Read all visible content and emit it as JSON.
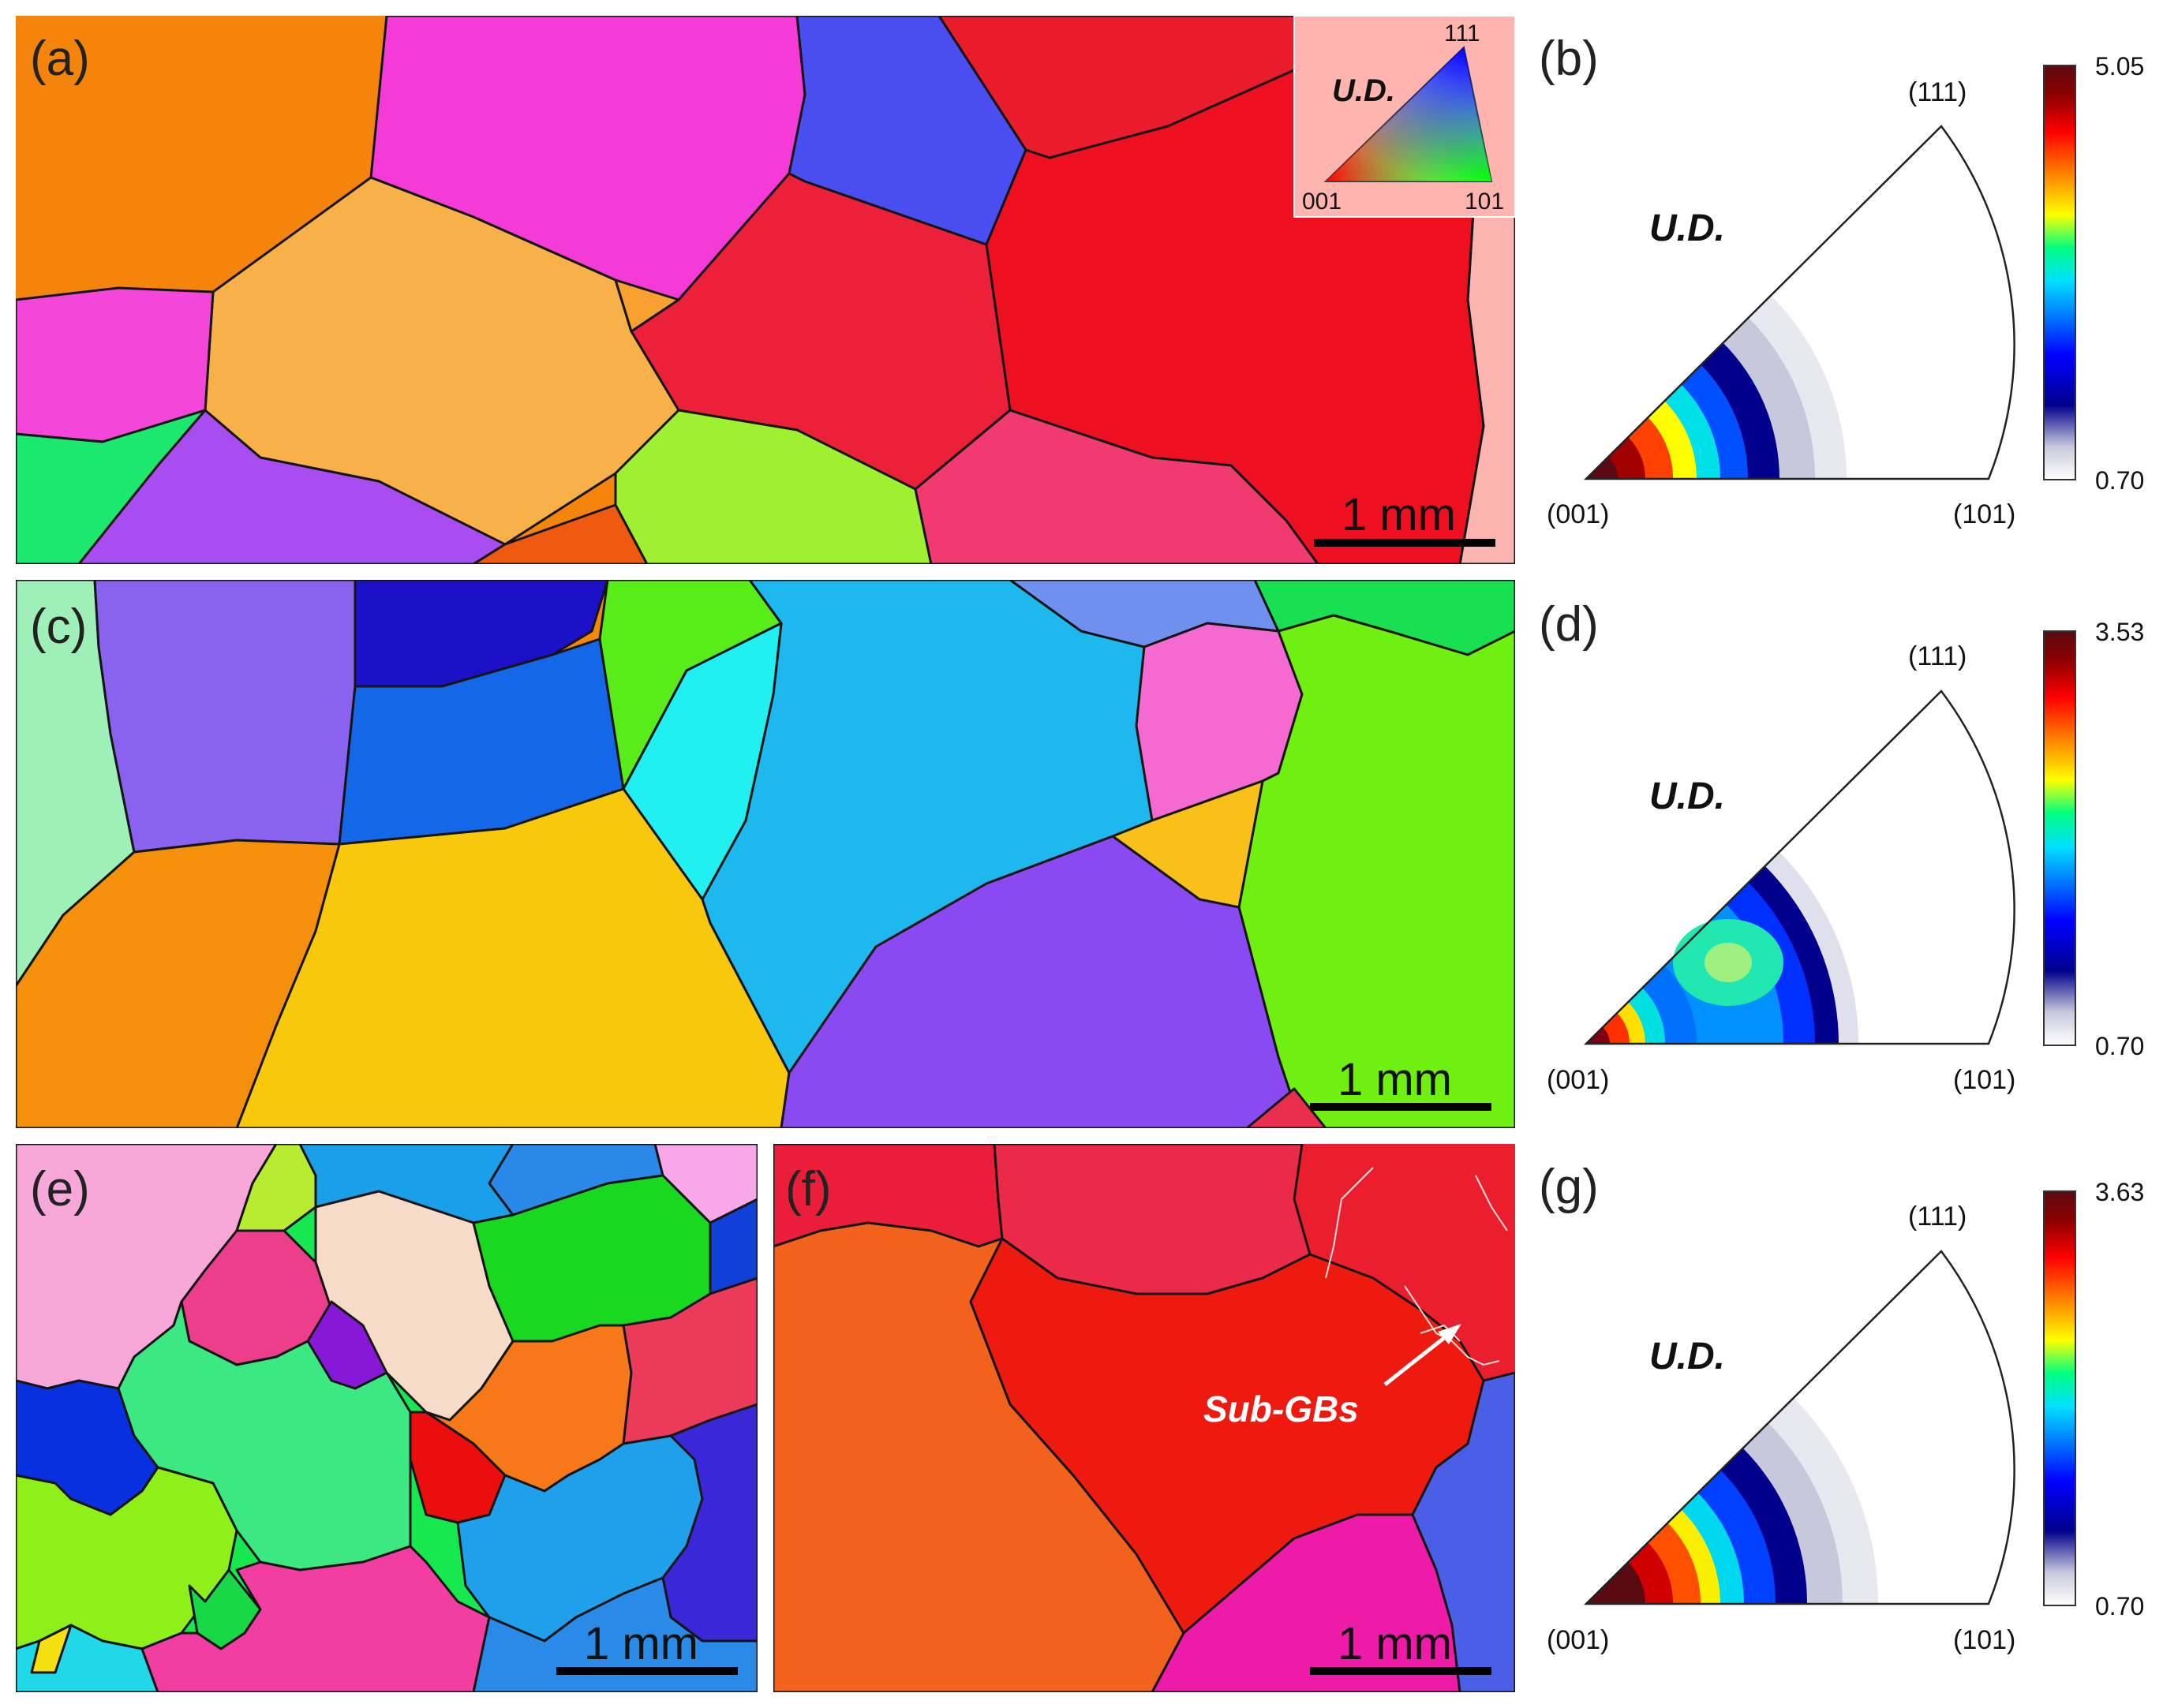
{
  "figure": {
    "panels": {
      "a": {
        "label": "(a)",
        "scale_bar": "1 mm"
      },
      "b": {
        "label": "(b)"
      },
      "c": {
        "label": "(c)",
        "scale_bar": "1 mm"
      },
      "d": {
        "label": "(d)"
      },
      "e": {
        "label": "(e)",
        "scale_bar": "1 mm"
      },
      "f": {
        "label": "(f)",
        "scale_bar": "1 mm",
        "annotation": "Sub-GBs"
      },
      "g": {
        "label": "(g)"
      }
    },
    "color_key": {
      "direction": "U.D.",
      "corner_001": "001",
      "corner_101": "101",
      "corner_111": "111"
    },
    "pole_figures": [
      {
        "id": "b",
        "direction": "U.D.",
        "pole_001": "(001)",
        "pole_101": "(101)",
        "pole_111": "(111)",
        "max": "5.05",
        "min": "0.70"
      },
      {
        "id": "d",
        "direction": "U.D.",
        "pole_001": "(001)",
        "pole_101": "(101)",
        "pole_111": "(111)",
        "max": "3.53",
        "min": "0.70"
      },
      {
        "id": "g",
        "direction": "U.D.",
        "pole_001": "(001)",
        "pole_101": "(101)",
        "pole_111": "(111)",
        "max": "3.63",
        "min": "0.70"
      }
    ],
    "colors": {
      "boundary": "#151515",
      "colormap": [
        "#ffffff",
        "#c8c8dc",
        "#00008c",
        "#0000ff",
        "#0080ff",
        "#00e0ff",
        "#00ff80",
        "#ffff00",
        "#ff8000",
        "#ff0000",
        "#8b0000",
        "#5a0a12"
      ]
    }
  }
}
